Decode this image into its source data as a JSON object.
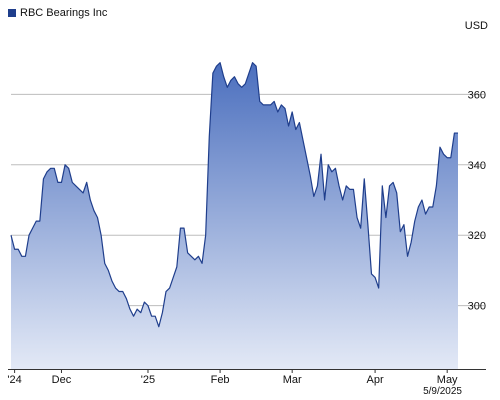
{
  "legend": {
    "label": "RBC Bearings Inc"
  },
  "currency": "USD",
  "date_label": "5/9/2025",
  "colors": {
    "line": "#1f3e8c",
    "fill_top": "#4b6fbe",
    "fill_bottom": "#e3e9f6",
    "grid": "#bdbdbd",
    "swatch": "#1f3e8c"
  },
  "chart_data": {
    "type": "area",
    "title": "",
    "xlabel": "",
    "ylabel": "",
    "ylim": [
      282,
      376
    ],
    "y_ticks": [
      300,
      320,
      340,
      360
    ],
    "grid": true,
    "x_ticks": [
      {
        "label": "'24",
        "index": 1
      },
      {
        "label": "Dec",
        "index": 14
      },
      {
        "label": "'25",
        "index": 38
      },
      {
        "label": "Feb",
        "index": 58
      },
      {
        "label": "Mar",
        "index": 78
      },
      {
        "label": "Apr",
        "index": 101
      },
      {
        "label": "May",
        "index": 121
      }
    ],
    "series": [
      {
        "name": "RBC Bearings Inc",
        "values": [
          320,
          316,
          316,
          314,
          314,
          320,
          322,
          324,
          324,
          336,
          338,
          339,
          339,
          335,
          335,
          340,
          339,
          335,
          334,
          333,
          332,
          335,
          330,
          327,
          325,
          320,
          312,
          310,
          307,
          305,
          304,
          304,
          302,
          299,
          297,
          299,
          298,
          301,
          300,
          297,
          297,
          294,
          298,
          304,
          305,
          308,
          311,
          322,
          322,
          315,
          314,
          313,
          314,
          312,
          320,
          348,
          366,
          368,
          369,
          365,
          362,
          364,
          365,
          363,
          362,
          363,
          366,
          369,
          368,
          358,
          357,
          357,
          357,
          358,
          355,
          357,
          356,
          351,
          355,
          350,
          352,
          347,
          342,
          337,
          331,
          334,
          343,
          330,
          340,
          338,
          339,
          334,
          330,
          334,
          333,
          333,
          325,
          322,
          336,
          323,
          309,
          308,
          305,
          334,
          325,
          334,
          335,
          332,
          321,
          323,
          314,
          318,
          324,
          328,
          330,
          326,
          328,
          328,
          334,
          345,
          343,
          342,
          342,
          349,
          349
        ]
      }
    ]
  }
}
